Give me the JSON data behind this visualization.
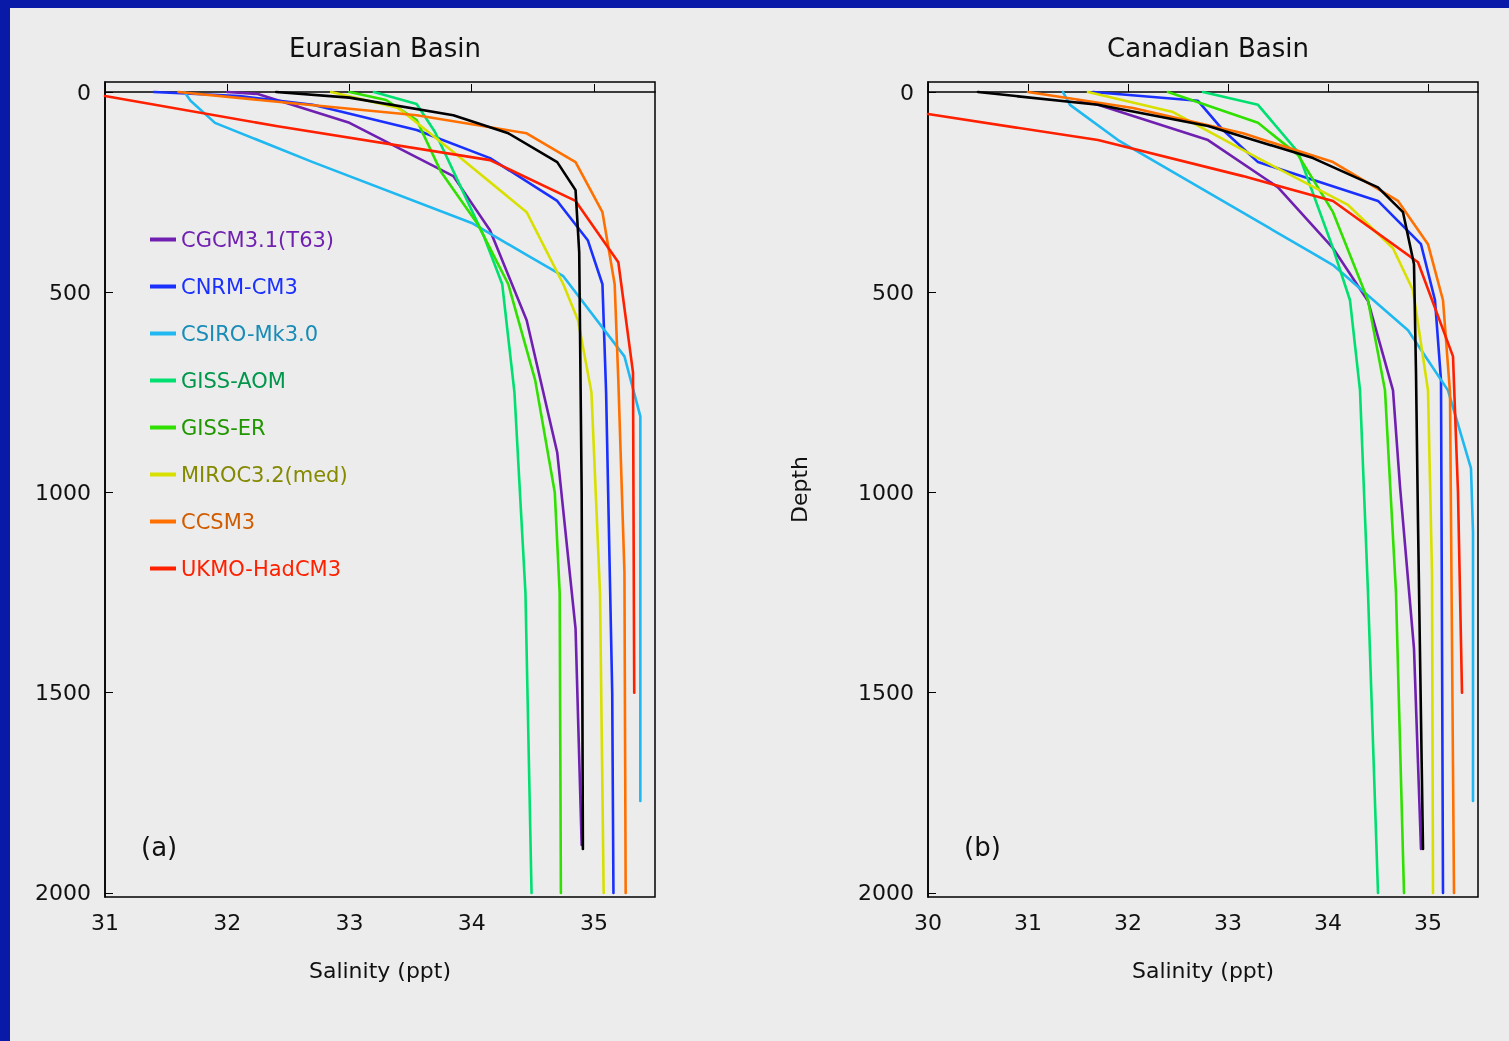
{
  "chart_data": [
    {
      "type": "line",
      "title": "Eurasian Basin",
      "xlabel": "Salinity (ppt)",
      "xlim": [
        31,
        35.5
      ],
      "xticks": [
        31,
        32,
        33,
        34,
        35
      ],
      "ylim": [
        2010,
        -25
      ],
      "yticks": [
        0,
        500,
        1000,
        1500,
        2000
      ],
      "legend": "top left",
      "annotations": [
        "(a)"
      ],
      "series": [
        {
          "name": "CGCM3.1(T63)",
          "color": "#7020b0",
          "x": [
            32.0,
            32.25,
            33.0,
            33.85,
            34.15,
            34.45,
            34.7,
            34.85,
            34.9
          ],
          "values": [
            0,
            5,
            77,
            210,
            345,
            570,
            900,
            1340,
            1880
          ]
        },
        {
          "name": "CNRM-CM3",
          "color": "#1a30ff",
          "x": [
            31.4,
            32.1,
            32.7,
            33.55,
            34.15,
            34.7,
            34.95,
            35.07,
            35.1,
            35.15,
            35.16
          ],
          "values": [
            0,
            10,
            32,
            95,
            165,
            272,
            370,
            480,
            750,
            1500,
            2000
          ]
        },
        {
          "name": "CSIRO-Mk3.0",
          "color": "#20b8f0",
          "x": [
            31.65,
            31.7,
            31.9,
            32.7,
            34.0,
            34.75,
            35.25,
            35.38,
            35.38
          ],
          "values": [
            0,
            22,
            77,
            175,
            327,
            460,
            660,
            810,
            1770
          ]
        },
        {
          "name": "GISS-AOM",
          "color": "#00e070",
          "x": [
            33.2,
            33.55,
            33.7,
            33.9,
            34.1,
            34.25,
            34.35,
            34.44,
            34.49
          ],
          "values": [
            0,
            30,
            100,
            230,
            360,
            480,
            750,
            1250,
            2000
          ]
        },
        {
          "name": "GISS-ER",
          "color": "#30e000",
          "x": [
            33.0,
            33.3,
            33.55,
            33.75,
            34.05,
            34.3,
            34.52,
            34.68,
            34.72,
            34.73
          ],
          "values": [
            0,
            20,
            70,
            200,
            330,
            480,
            720,
            1000,
            1250,
            2000
          ]
        },
        {
          "name": "MIROC3.2(med)",
          "color": "#d8e000",
          "x": [
            32.85,
            33.4,
            33.85,
            34.45,
            34.75,
            34.87,
            34.98,
            35.05,
            35.08
          ],
          "values": [
            0,
            40,
            150,
            300,
            480,
            570,
            750,
            1250,
            2000
          ]
        },
        {
          "name": "CCSM3",
          "color": "#ff7000",
          "x": [
            31.6,
            32.6,
            33.55,
            34.45,
            34.85,
            35.07,
            35.17,
            35.2,
            35.25,
            35.26
          ],
          "values": [
            0,
            30,
            58,
            103,
            175,
            300,
            480,
            720,
            1200,
            2000
          ]
        },
        {
          "name": "UKMO-HadCM3",
          "color": "#ff2000",
          "x": [
            31.0,
            32.4,
            34.15,
            34.85,
            35.2,
            35.32,
            35.33
          ],
          "values": [
            10,
            85,
            170,
            272,
            425,
            700,
            1500
          ]
        },
        {
          "color": "#000000",
          "x": [
            32.4,
            33.0,
            33.85,
            34.3,
            34.7,
            34.85,
            34.88,
            34.9,
            34.91
          ],
          "values": [
            0,
            14,
            58,
            103,
            175,
            245,
            400,
            1000,
            1890
          ]
        }
      ]
    },
    {
      "type": "line",
      "title": "Canadian Basin",
      "xlabel": "Salinity (ppt)",
      "ylabel": "Depth",
      "xlim": [
        30,
        35.5
      ],
      "xticks": [
        30,
        31,
        32,
        33,
        34,
        35
      ],
      "ylim": [
        2010,
        -25
      ],
      "yticks": [
        0,
        500,
        1000,
        1500,
        2000
      ],
      "annotations": [
        "(b)"
      ],
      "series": [
        {
          "color": "#7020b0",
          "x": [
            31.5,
            31.7,
            32.8,
            33.5,
            34.05,
            34.4,
            34.65,
            34.72,
            34.86,
            34.93
          ],
          "values": [
            20,
            32,
            120,
            238,
            390,
            522,
            745,
            985,
            1390,
            1890
          ]
        },
        {
          "color": "#1a30ff",
          "x": [
            31.65,
            32.7,
            32.95,
            33.3,
            34.5,
            34.93,
            35.07,
            35.13,
            35.15
          ],
          "values": [
            0,
            22,
            95,
            175,
            272,
            380,
            520,
            720,
            2000
          ]
        },
        {
          "color": "#20b8f0",
          "x": [
            31.35,
            31.42,
            31.9,
            34.05,
            34.8,
            35.2,
            35.43,
            35.45,
            35.45
          ],
          "values": [
            0,
            32,
            120,
            432,
            595,
            745,
            940,
            1100,
            1770
          ]
        },
        {
          "color": "#00e070",
          "x": [
            32.75,
            33.3,
            33.7,
            34.05,
            34.22,
            34.32,
            34.4,
            34.5
          ],
          "values": [
            0,
            32,
            150,
            390,
            520,
            745,
            1250,
            2000
          ]
        },
        {
          "color": "#30e000",
          "x": [
            32.4,
            33.3,
            33.7,
            34.05,
            34.4,
            34.57,
            34.68,
            34.76
          ],
          "values": [
            0,
            77,
            157,
            300,
            520,
            745,
            1250,
            2000
          ]
        },
        {
          "color": "#d8e000",
          "x": [
            31.6,
            32.45,
            33.3,
            34.2,
            34.65,
            34.85,
            35.0,
            35.04,
            35.05
          ],
          "values": [
            0,
            50,
            165,
            282,
            390,
            495,
            745,
            1200,
            2000
          ]
        },
        {
          "color": "#ff7000",
          "x": [
            31.0,
            32.05,
            33.15,
            34.05,
            34.7,
            35.0,
            35.15,
            35.22,
            35.26
          ],
          "values": [
            0,
            40,
            103,
            175,
            272,
            380,
            520,
            750,
            2000
          ]
        },
        {
          "color": "#ff2000",
          "x": [
            30.0,
            31.7,
            33.15,
            34.05,
            34.9,
            35.25,
            35.3,
            35.34
          ],
          "values": [
            55,
            120,
            210,
            272,
            425,
            660,
            1000,
            1500
          ]
        },
        {
          "color": "#000000",
          "x": [
            30.5,
            31.7,
            32.8,
            33.85,
            34.5,
            34.75,
            34.86,
            34.88,
            34.9,
            34.95
          ],
          "values": [
            0,
            32,
            85,
            165,
            238,
            300,
            430,
            700,
            1075,
            1890
          ]
        }
      ]
    }
  ]
}
